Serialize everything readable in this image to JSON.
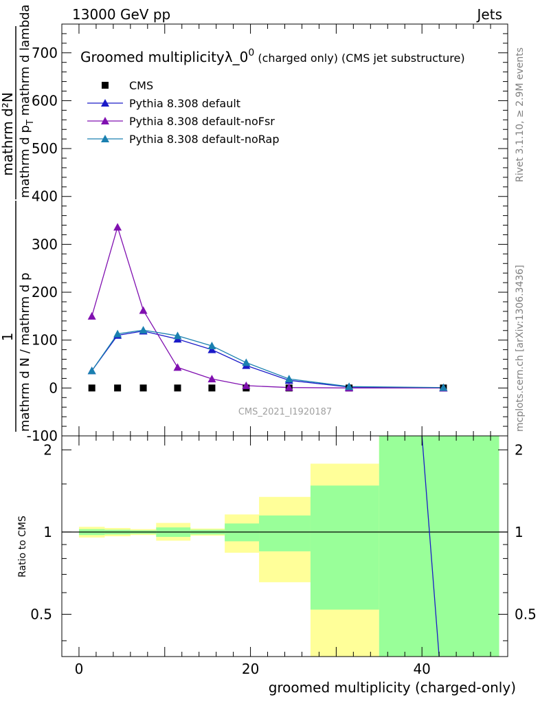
{
  "header": {
    "left": "13000 GeV pp",
    "right": "Jets"
  },
  "side": {
    "rivet": "Rivet 3.1.10, ≥ 2.9M events",
    "mcplots": "mcplots.cern.ch [arXiv:1306.3436]"
  },
  "colors": {
    "cms": "#000000",
    "default": "#1a1ac8",
    "noFsr": "#8010b0",
    "noRap": "#1a80b0",
    "band_inner": "#99ff99",
    "band_outer": "#ffff99"
  },
  "chart_data": [
    {
      "type": "line",
      "title_main": "Groomed multiplicityλ_0",
      "title_sup": "0",
      "title_tail": " (charged only) (CMS jet substructure)",
      "ylabel_num": "1",
      "ylabel_den": "mathrm d N / mathrm d p",
      "ylabel_right_num": "mathrm d²N",
      "ylabel_right_den": "mathrm d p",
      "ylabel_sub": "T",
      "ylabel_tail": " mathrm d lambda",
      "watermark": "CMS_2021_I1920187",
      "xlim": [
        -2,
        50
      ],
      "ylim": [
        -100,
        760
      ],
      "yticks": [
        -100,
        0,
        100,
        200,
        300,
        400,
        500,
        600,
        700
      ],
      "legend_position": "top-left",
      "x": [
        1.5,
        4.5,
        7.5,
        11.5,
        15.5,
        19.5,
        24.5,
        31.5,
        42.5
      ],
      "series": [
        {
          "name": "CMS",
          "marker": "square",
          "color_key": "cms",
          "values": [
            0,
            0,
            0,
            0,
            0,
            0,
            0,
            0,
            0
          ]
        },
        {
          "name": "Pythia 8.308 default",
          "marker": "triangle",
          "color_key": "default",
          "values": [
            36,
            110,
            119,
            102,
            80,
            47,
            16,
            2,
            0
          ]
        },
        {
          "name": "Pythia 8.308 default-noFsr",
          "marker": "triangle",
          "color_key": "noFsr",
          "values": [
            150,
            336,
            162,
            43,
            19,
            5,
            1,
            0,
            0
          ]
        },
        {
          "name": "Pythia 8.308 default-noRap",
          "marker": "triangle",
          "color_key": "noRap",
          "values": [
            36,
            113,
            121,
            109,
            88,
            53,
            19,
            3,
            1
          ]
        }
      ]
    },
    {
      "type": "line",
      "ylabel": "Ratio to CMS",
      "xlabel": "groomed multiplicity (charged-only)",
      "xlim": [
        -2,
        50
      ],
      "ylim": [
        0.35,
        2.25
      ],
      "yticks": [
        0.5,
        1,
        2
      ],
      "ytick_labels": [
        "0.5",
        "1",
        "2"
      ],
      "xticks": [
        0,
        20,
        40
      ],
      "xtick_labels": [
        "0",
        "20",
        "40"
      ],
      "bins": [
        {
          "lo": 0,
          "hi": 3,
          "inner": [
            0.975,
            1.025
          ],
          "outer": [
            0.955,
            1.045
          ]
        },
        {
          "lo": 3,
          "hi": 6,
          "inner": [
            0.98,
            1.02
          ],
          "outer": [
            0.965,
            1.035
          ]
        },
        {
          "lo": 6,
          "hi": 9,
          "inner": [
            0.985,
            1.015
          ],
          "outer": [
            0.975,
            1.025
          ]
        },
        {
          "lo": 9,
          "hi": 13,
          "inner": [
            0.96,
            1.04
          ],
          "outer": [
            0.93,
            1.08
          ]
        },
        {
          "lo": 13,
          "hi": 17,
          "inner": [
            0.98,
            1.02
          ],
          "outer": [
            0.97,
            1.03
          ]
        },
        {
          "lo": 17,
          "hi": 21,
          "inner": [
            0.925,
            1.075
          ],
          "outer": [
            0.84,
            1.16
          ]
        },
        {
          "lo": 21,
          "hi": 27,
          "inner": [
            0.85,
            1.15
          ],
          "outer": [
            0.655,
            1.345
          ]
        },
        {
          "lo": 27,
          "hi": 35,
          "inner": [
            0.52,
            1.48
          ],
          "outer": [
            0.35,
            1.78
          ]
        },
        {
          "lo": 35,
          "hi": 49,
          "inner": [
            0.35,
            2.25
          ],
          "outer": [
            0.35,
            2.25
          ]
        }
      ],
      "ratio_line": {
        "x": [
          40,
          42
        ],
        "y": [
          2.25,
          0.35
        ],
        "color_key": "default"
      }
    }
  ]
}
